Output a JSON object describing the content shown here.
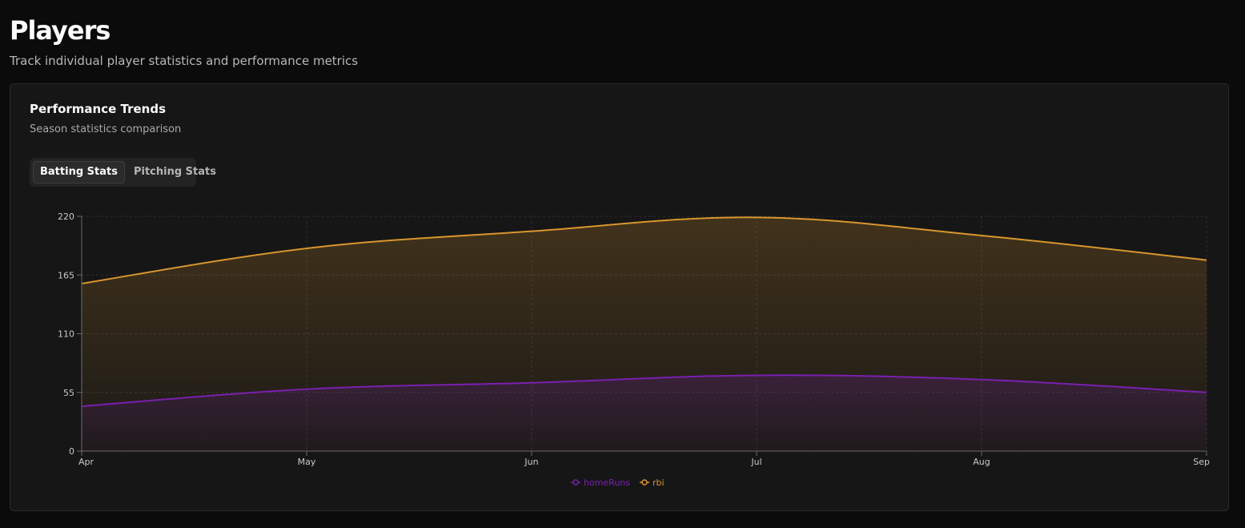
{
  "header": {
    "title": "Players",
    "subtitle": "Track individual player statistics and performance metrics"
  },
  "card": {
    "title": "Performance Trends",
    "description": "Season statistics comparison"
  },
  "tabs": [
    {
      "label": "Batting Stats",
      "active": true
    },
    {
      "label": "Pitching Stats",
      "active": false
    }
  ],
  "colors": {
    "homeRuns": "#7a1fb0",
    "rbi": "#d9962e"
  },
  "chart_data": {
    "type": "area",
    "categories": [
      "Apr",
      "May",
      "Jun",
      "Jul",
      "Aug",
      "Sep"
    ],
    "series": [
      {
        "name": "homeRuns",
        "values": [
          42,
          58,
          64,
          71,
          67,
          55
        ],
        "color": "#7a1fb0"
      },
      {
        "name": "rbi",
        "values": [
          157,
          190,
          206,
          219,
          202,
          179
        ],
        "color": "#d9962e"
      }
    ],
    "yticks": [
      0,
      55,
      110,
      165,
      220
    ],
    "ylim": [
      0,
      220
    ],
    "grid": true,
    "legend": "bottom-center",
    "stacked": false
  }
}
